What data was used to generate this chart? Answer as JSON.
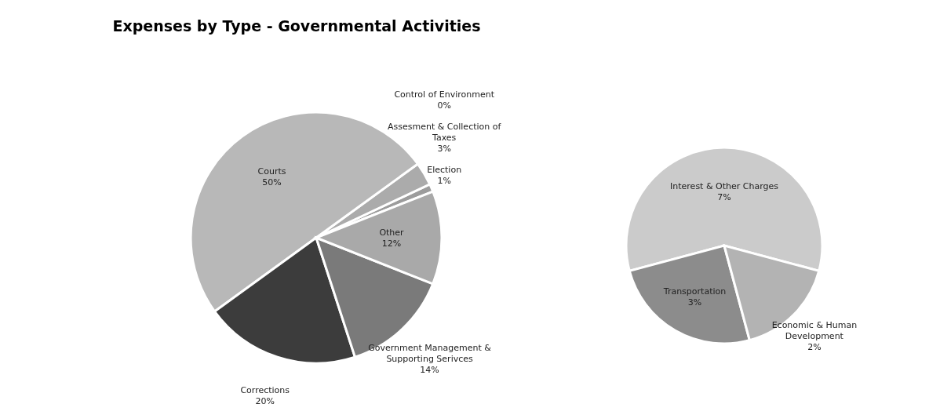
{
  "chart_data": [
    {
      "type": "pie",
      "title": "Expenses by Type - Governmental Activities",
      "categories": [
        "Election",
        "Assesment & Collection of Taxes",
        "Control of Environment",
        "Courts",
        "Corrections",
        "Government  Management & Supporting Serivces",
        "Other"
      ],
      "values": [
        1,
        3,
        0,
        50,
        20,
        14,
        12
      ],
      "value_labels": [
        "1%",
        "3%",
        "0%",
        "50%",
        "20%",
        "14%",
        "12%"
      ],
      "colors": [
        "#9c9c9c",
        "#ababab",
        "#555555",
        "#b8b8b8",
        "#3c3c3c",
        "#7a7a7a",
        "#a9a9a9"
      ]
    },
    {
      "type": "pie",
      "categories": [
        "Interest & Other Charges",
        "Transportation",
        "Economic & Human Development"
      ],
      "values": [
        7,
        3,
        2
      ],
      "value_labels": [
        "7%",
        "3%",
        "2%"
      ],
      "colors": [
        "#cbcbcb",
        "#8c8c8c",
        "#b3b3b3"
      ]
    }
  ]
}
